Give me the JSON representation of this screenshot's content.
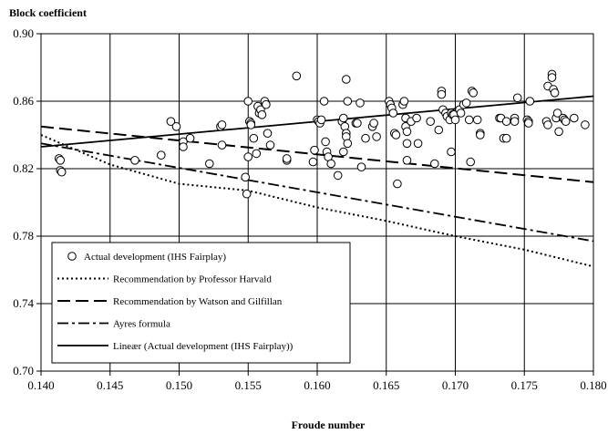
{
  "chart_data": {
    "type": "scatter",
    "title": "",
    "ylabel": "Block coefficient",
    "xlabel": "Froude number",
    "xlim": [
      0.14,
      0.18
    ],
    "ylim": [
      0.7,
      0.9
    ],
    "x_ticks": [
      "0.140",
      "0.145",
      "0.150",
      "0.155",
      "0.160",
      "0.165",
      "0.170",
      "0.175",
      "0.180"
    ],
    "y_ticks": [
      "0.70",
      "0.74",
      "0.78",
      "0.82",
      "0.86",
      "0.90"
    ],
    "grid": true,
    "legend_placement": "bottom-left",
    "series": [
      {
        "name": "Actual development (IHS Fairplay)",
        "kind": "scatter",
        "marker": "open-circle",
        "points": [
          [
            0.1413,
            0.826
          ],
          [
            0.1414,
            0.825
          ],
          [
            0.1414,
            0.819
          ],
          [
            0.1415,
            0.818
          ],
          [
            0.1468,
            0.825
          ],
          [
            0.1487,
            0.828
          ],
          [
            0.1494,
            0.848
          ],
          [
            0.1498,
            0.845
          ],
          [
            0.1503,
            0.836
          ],
          [
            0.1503,
            0.833
          ],
          [
            0.1508,
            0.838
          ],
          [
            0.1522,
            0.823
          ],
          [
            0.153,
            0.845
          ],
          [
            0.1531,
            0.846
          ],
          [
            0.1531,
            0.834
          ],
          [
            0.1548,
            0.815
          ],
          [
            0.1549,
            0.805
          ],
          [
            0.155,
            0.827
          ],
          [
            0.155,
            0.86
          ],
          [
            0.1551,
            0.848
          ],
          [
            0.1552,
            0.847
          ],
          [
            0.1552,
            0.846
          ],
          [
            0.1554,
            0.838
          ],
          [
            0.1556,
            0.829
          ],
          [
            0.1557,
            0.857
          ],
          [
            0.1558,
            0.853
          ],
          [
            0.1559,
            0.855
          ],
          [
            0.156,
            0.852
          ],
          [
            0.1562,
            0.86
          ],
          [
            0.1563,
            0.858
          ],
          [
            0.1564,
            0.841
          ],
          [
            0.1566,
            0.834
          ],
          [
            0.1578,
            0.825
          ],
          [
            0.1578,
            0.826
          ],
          [
            0.1585,
            0.875
          ],
          [
            0.1597,
            0.824
          ],
          [
            0.1598,
            0.831
          ],
          [
            0.16,
            0.849
          ],
          [
            0.1601,
            0.848
          ],
          [
            0.1602,
            0.847
          ],
          [
            0.1603,
            0.849
          ],
          [
            0.1605,
            0.86
          ],
          [
            0.1606,
            0.836
          ],
          [
            0.1607,
            0.83
          ],
          [
            0.1608,
            0.827
          ],
          [
            0.161,
            0.823
          ],
          [
            0.1615,
            0.816
          ],
          [
            0.1618,
            0.848
          ],
          [
            0.1619,
            0.83
          ],
          [
            0.1619,
            0.85
          ],
          [
            0.162,
            0.845
          ],
          [
            0.1621,
            0.841
          ],
          [
            0.1621,
            0.839
          ],
          [
            0.1622,
            0.835
          ],
          [
            0.1621,
            0.873
          ],
          [
            0.1622,
            0.86
          ],
          [
            0.1628,
            0.847
          ],
          [
            0.1629,
            0.847
          ],
          [
            0.1631,
            0.859
          ],
          [
            0.1632,
            0.821
          ],
          [
            0.1635,
            0.838
          ],
          [
            0.164,
            0.845
          ],
          [
            0.1641,
            0.847
          ],
          [
            0.1643,
            0.839
          ],
          [
            0.1652,
            0.86
          ],
          [
            0.1653,
            0.858
          ],
          [
            0.1654,
            0.856
          ],
          [
            0.1655,
            0.853
          ],
          [
            0.1656,
            0.841
          ],
          [
            0.1657,
            0.84
          ],
          [
            0.1658,
            0.811
          ],
          [
            0.1662,
            0.858
          ],
          [
            0.1663,
            0.86
          ],
          [
            0.1664,
            0.85
          ],
          [
            0.1664,
            0.845
          ],
          [
            0.1665,
            0.842
          ],
          [
            0.1665,
            0.835
          ],
          [
            0.1665,
            0.825
          ],
          [
            0.1668,
            0.848
          ],
          [
            0.1672,
            0.85
          ],
          [
            0.1673,
            0.835
          ],
          [
            0.1682,
            0.848
          ],
          [
            0.1685,
            0.823
          ],
          [
            0.1688,
            0.843
          ],
          [
            0.169,
            0.866
          ],
          [
            0.169,
            0.864
          ],
          [
            0.1691,
            0.855
          ],
          [
            0.1693,
            0.853
          ],
          [
            0.1694,
            0.851
          ],
          [
            0.1696,
            0.849
          ],
          [
            0.1697,
            0.83
          ],
          [
            0.1697,
            0.853
          ],
          [
            0.1698,
            0.852
          ],
          [
            0.1699,
            0.852
          ],
          [
            0.17,
            0.849
          ],
          [
            0.1703,
            0.855
          ],
          [
            0.1704,
            0.853
          ],
          [
            0.1706,
            0.858
          ],
          [
            0.1708,
            0.859
          ],
          [
            0.171,
            0.849
          ],
          [
            0.1711,
            0.824
          ],
          [
            0.1712,
            0.866
          ],
          [
            0.1713,
            0.865
          ],
          [
            0.1716,
            0.849
          ],
          [
            0.1718,
            0.841
          ],
          [
            0.1718,
            0.84
          ],
          [
            0.1732,
            0.85
          ],
          [
            0.1733,
            0.85
          ],
          [
            0.1735,
            0.838
          ],
          [
            0.1737,
            0.838
          ],
          [
            0.1737,
            0.848
          ],
          [
            0.1743,
            0.85
          ],
          [
            0.1743,
            0.848
          ],
          [
            0.1745,
            0.862
          ],
          [
            0.1752,
            0.849
          ],
          [
            0.1753,
            0.848
          ],
          [
            0.1753,
            0.847
          ],
          [
            0.1754,
            0.86
          ],
          [
            0.1766,
            0.848
          ],
          [
            0.1767,
            0.846
          ],
          [
            0.1767,
            0.869
          ],
          [
            0.177,
            0.876
          ],
          [
            0.177,
            0.874
          ],
          [
            0.1771,
            0.867
          ],
          [
            0.1772,
            0.865
          ],
          [
            0.1773,
            0.85
          ],
          [
            0.1774,
            0.853
          ],
          [
            0.1775,
            0.842
          ],
          [
            0.1778,
            0.85
          ],
          [
            0.1779,
            0.849
          ],
          [
            0.178,
            0.848
          ],
          [
            0.1786,
            0.85
          ],
          [
            0.1794,
            0.846
          ]
        ]
      },
      {
        "name": "Recommendation by Professor Harvald",
        "kind": "line",
        "style": "dotted",
        "points": [
          [
            0.14,
            0.84
          ],
          [
            0.145,
            0.8225
          ],
          [
            0.15,
            0.811
          ],
          [
            0.155,
            0.807
          ],
          [
            0.16,
            0.797
          ],
          [
            0.165,
            0.789
          ],
          [
            0.17,
            0.78
          ],
          [
            0.175,
            0.772
          ],
          [
            0.18,
            0.762
          ]
        ]
      },
      {
        "name": "Recommendation by Watson and Gilfillan",
        "kind": "line",
        "style": "long-dash",
        "points": [
          [
            0.14,
            0.845
          ],
          [
            0.18,
            0.812
          ]
        ]
      },
      {
        "name": "Ayres formula",
        "kind": "line",
        "style": "dash-dot",
        "points": [
          [
            0.14,
            0.835
          ],
          [
            0.18,
            0.777
          ]
        ]
      },
      {
        "name": "Lineær (Actual development (IHS Fairplay))",
        "kind": "line",
        "style": "solid",
        "points": [
          [
            0.14,
            0.833
          ],
          [
            0.18,
            0.863
          ]
        ]
      }
    ]
  }
}
